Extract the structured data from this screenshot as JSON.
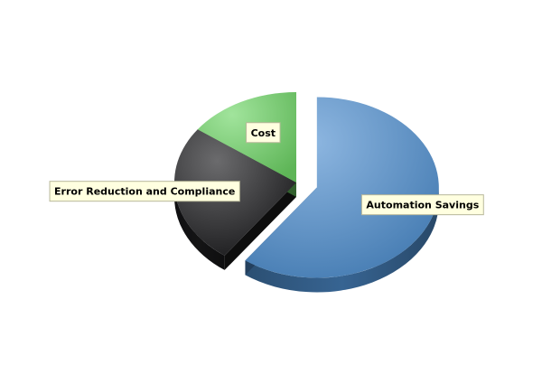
{
  "chart_data": {
    "type": "pie",
    "style": "3d-exploded",
    "title": "",
    "categories": [
      "Automation Savings",
      "Error Reduction and Compliance",
      "Cost"
    ],
    "values": [
      60,
      25,
      15
    ],
    "exploded": [
      "Automation Savings"
    ],
    "colors": {
      "Automation Savings": "#4f8fd0",
      "Error Reduction and Compliance": "#1c1c1e",
      "Cost": "#6fd566"
    },
    "label_background": "#ffffe0",
    "legend": "none"
  }
}
